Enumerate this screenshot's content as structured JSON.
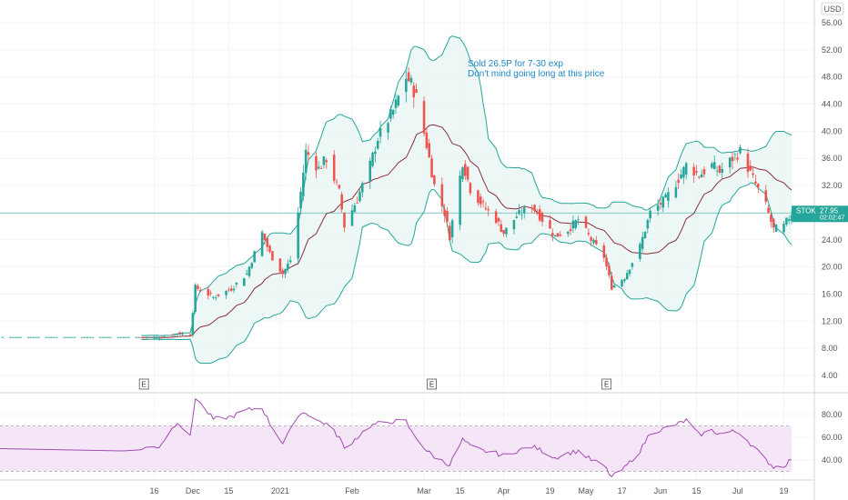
{
  "currency_label": "USD",
  "annotation": {
    "line1": "Sold 26.5P for 7-30 exp",
    "line2": "Don't mind going long at this price"
  },
  "price_badge": {
    "ticker": "STOK",
    "price": "27.95",
    "countdown": "02:02:47"
  },
  "earnings_marker": "E",
  "x_labels": [
    "16",
    "Dec",
    "15",
    "2021",
    "Feb",
    "Mar",
    "15",
    "Apr",
    "19",
    "May",
    "17",
    "Jun",
    "15",
    "Jul",
    "19"
  ],
  "colors": {
    "up": "#26a69a",
    "down": "#ef5350",
    "band": "#26a69a",
    "band_fill": "#e8f5f3",
    "basis": "#8b2f3c",
    "rsi_line": "#a34bb1",
    "rsi_fill": "#f3e3f6",
    "price_line": "#26a69a"
  },
  "chart_data": [
    {
      "type": "candlestick",
      "title": "",
      "indicators": [
        "Bollinger Bands"
      ],
      "y_ticks": [
        4,
        8,
        12,
        16,
        20,
        24,
        28,
        32,
        36,
        40,
        44,
        48,
        52,
        56
      ],
      "ylim": [
        2,
        58
      ],
      "x_range": [
        "2020-11-11",
        "2021-07-22"
      ],
      "x_ticks": [
        {
          "label": "16",
          "date": "2020-11-16"
        },
        {
          "label": "Dec",
          "date": "2020-12-01"
        },
        {
          "label": "15",
          "date": "2020-12-15"
        },
        {
          "label": "2021",
          "date": "2021-01-04"
        },
        {
          "label": "Feb",
          "date": "2021-02-01"
        },
        {
          "label": "Mar",
          "date": "2021-03-01"
        },
        {
          "label": "15",
          "date": "2021-03-15"
        },
        {
          "label": "Apr",
          "date": "2021-04-01"
        },
        {
          "label": "19",
          "date": "2021-04-19"
        },
        {
          "label": "May",
          "date": "2021-05-03"
        },
        {
          "label": "17",
          "date": "2021-05-17"
        },
        {
          "label": "Jun",
          "date": "2021-06-01"
        },
        {
          "label": "15",
          "date": "2021-06-15"
        },
        {
          "label": "Jul",
          "date": "2021-07-01"
        },
        {
          "label": "19",
          "date": "2021-07-19"
        }
      ],
      "earnings_dates": [
        "2020-11-12",
        "2021-03-04",
        "2021-05-11"
      ],
      "last_price": 27.95,
      "close_series": [
        [
          "2020-11-11",
          9.6
        ],
        [
          "2020-11-18",
          9.6
        ],
        [
          "2020-11-25",
          10.2
        ],
        [
          "2020-11-30",
          10.0
        ],
        [
          "2020-12-02",
          17.0
        ],
        [
          "2020-12-09",
          15.5
        ],
        [
          "2020-12-16",
          16.8
        ],
        [
          "2020-12-22",
          19.0
        ],
        [
          "2020-12-28",
          25.0
        ],
        [
          "2020-12-31",
          22.0
        ],
        [
          "2021-01-05",
          19.0
        ],
        [
          "2021-01-08",
          21.0
        ],
        [
          "2021-01-11",
          28.0
        ],
        [
          "2021-01-14",
          37.0
        ],
        [
          "2021-01-19",
          34.5
        ],
        [
          "2021-01-22",
          36.0
        ],
        [
          "2021-01-27",
          31.0
        ],
        [
          "2021-01-29",
          26.0
        ],
        [
          "2021-02-03",
          30.0
        ],
        [
          "2021-02-08",
          35.0
        ],
        [
          "2021-02-11",
          39.0
        ],
        [
          "2021-02-17",
          43.0
        ],
        [
          "2021-02-22",
          48.0
        ],
        [
          "2021-02-24",
          47.0
        ],
        [
          "2021-02-26",
          45.0
        ],
        [
          "2021-03-02",
          38.0
        ],
        [
          "2021-03-05",
          32.0
        ],
        [
          "2021-03-09",
          28.0
        ],
        [
          "2021-03-11",
          24.5
        ],
        [
          "2021-03-16",
          35.5
        ],
        [
          "2021-03-19",
          31.5
        ],
        [
          "2021-03-24",
          29.0
        ],
        [
          "2021-03-29",
          27.0
        ],
        [
          "2021-04-01",
          25.0
        ],
        [
          "2021-04-06",
          27.5
        ],
        [
          "2021-04-12",
          29.0
        ],
        [
          "2021-04-16",
          27.0
        ],
        [
          "2021-04-21",
          24.5
        ],
        [
          "2021-04-26",
          25.5
        ],
        [
          "2021-04-30",
          27.0
        ],
        [
          "2021-05-05",
          24.0
        ],
        [
          "2021-05-10",
          21.5
        ],
        [
          "2021-05-13",
          17.0
        ],
        [
          "2021-05-18",
          18.5
        ],
        [
          "2021-05-24",
          23.0
        ],
        [
          "2021-05-28",
          28.0
        ],
        [
          "2021-06-03",
          30.0
        ],
        [
          "2021-06-08",
          33.0
        ],
        [
          "2021-06-11",
          35.0
        ],
        [
          "2021-06-16",
          33.5
        ],
        [
          "2021-06-21",
          35.0
        ],
        [
          "2021-06-24",
          34.0
        ],
        [
          "2021-06-29",
          36.0
        ],
        [
          "2021-07-02",
          37.0
        ],
        [
          "2021-07-07",
          33.0
        ],
        [
          "2021-07-12",
          29.0
        ],
        [
          "2021-07-15",
          25.5
        ],
        [
          "2021-07-19",
          26.0
        ],
        [
          "2021-07-22",
          27.95
        ]
      ]
    },
    {
      "type": "line",
      "title": "",
      "indicator": "RSI",
      "y_ticks": [
        40,
        60,
        80
      ],
      "ylim": [
        20,
        100
      ],
      "band": [
        30,
        70
      ],
      "series": [
        {
          "values": [
            [
              "2020-11-11",
              50
            ],
            [
              "2020-11-18",
              52
            ],
            [
              "2020-11-25",
              74
            ],
            [
              "2020-11-30",
              60
            ],
            [
              "2020-12-02",
              95
            ],
            [
              "2020-12-09",
              76
            ],
            [
              "2020-12-16",
              78
            ],
            [
              "2020-12-22",
              84
            ],
            [
              "2020-12-28",
              86
            ],
            [
              "2020-12-31",
              72
            ],
            [
              "2021-01-05",
              55
            ],
            [
              "2021-01-08",
              66
            ],
            [
              "2021-01-11",
              80
            ],
            [
              "2021-01-14",
              82
            ],
            [
              "2021-01-19",
              74
            ],
            [
              "2021-01-22",
              72
            ],
            [
              "2021-01-27",
              60
            ],
            [
              "2021-01-29",
              50
            ],
            [
              "2021-02-03",
              60
            ],
            [
              "2021-02-08",
              70
            ],
            [
              "2021-02-11",
              72
            ],
            [
              "2021-02-17",
              74
            ],
            [
              "2021-02-22",
              74
            ],
            [
              "2021-02-24",
              65
            ],
            [
              "2021-02-26",
              60
            ],
            [
              "2021-03-02",
              48
            ],
            [
              "2021-03-05",
              43
            ],
            [
              "2021-03-09",
              38
            ],
            [
              "2021-03-11",
              36
            ],
            [
              "2021-03-16",
              58
            ],
            [
              "2021-03-19",
              52
            ],
            [
              "2021-03-24",
              48
            ],
            [
              "2021-03-29",
              46
            ],
            [
              "2021-04-01",
              44
            ],
            [
              "2021-04-06",
              48
            ],
            [
              "2021-04-12",
              52
            ],
            [
              "2021-04-16",
              48
            ],
            [
              "2021-04-21",
              42
            ],
            [
              "2021-04-26",
              46
            ],
            [
              "2021-04-30",
              48
            ],
            [
              "2021-05-05",
              40
            ],
            [
              "2021-05-10",
              35
            ],
            [
              "2021-05-13",
              25
            ],
            [
              "2021-05-18",
              33
            ],
            [
              "2021-05-24",
              48
            ],
            [
              "2021-05-28",
              64
            ],
            [
              "2021-06-03",
              68
            ],
            [
              "2021-06-08",
              72
            ],
            [
              "2021-06-11",
              75
            ],
            [
              "2021-06-16",
              62
            ],
            [
              "2021-06-21",
              66
            ],
            [
              "2021-06-24",
              63
            ],
            [
              "2021-06-29",
              65
            ],
            [
              "2021-07-02",
              64
            ],
            [
              "2021-07-07",
              52
            ],
            [
              "2021-07-12",
              40
            ],
            [
              "2021-07-15",
              34
            ],
            [
              "2021-07-19",
              35
            ],
            [
              "2021-07-22",
              41
            ]
          ]
        }
      ]
    }
  ]
}
